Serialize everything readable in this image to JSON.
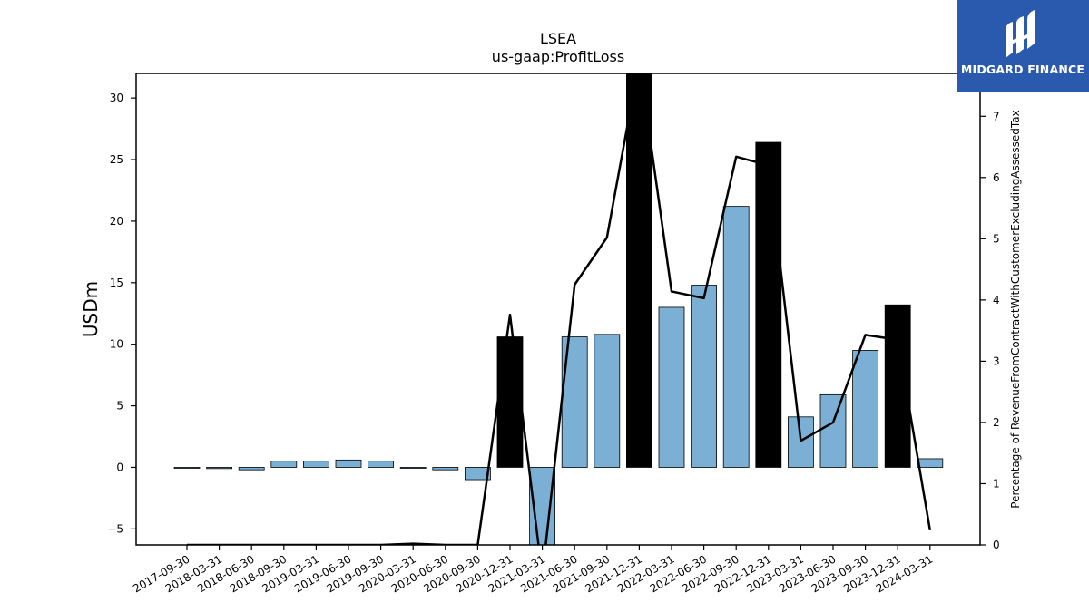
{
  "brand": {
    "name": "MIDGARD FINANCE",
    "logo_icon": "midgard-logo-icon",
    "color": "#2a5aad"
  },
  "chart_data": {
    "type": "bar",
    "title": "LSEA",
    "subtitle": "us-gaap:ProfitLoss",
    "ylabel": "USDm",
    "y2label": "Percentage of RevenueFromContractWithCustomerExcludingAssessedTax",
    "ylim": [
      -6.3,
      32
    ],
    "y2lim": [
      0,
      7.7
    ],
    "yticks": [
      -5,
      0,
      5,
      10,
      15,
      20,
      25,
      30
    ],
    "y2ticks": [
      0,
      1,
      2,
      3,
      4,
      5,
      6,
      7
    ],
    "categories": [
      "2017-09-30",
      "2018-03-31",
      "2018-06-30",
      "2018-09-30",
      "2019-03-31",
      "2019-06-30",
      "2019-09-30",
      "2020-03-31",
      "2020-06-30",
      "2020-09-30",
      "2020-12-31",
      "2021-03-31",
      "2021-06-30",
      "2021-09-30",
      "2021-12-31",
      "2022-03-31",
      "2022-06-30",
      "2022-09-30",
      "2022-12-31",
      "2023-03-31",
      "2023-06-30",
      "2023-09-30",
      "2023-12-31",
      "2024-03-31"
    ],
    "series": [
      {
        "kind": "bar",
        "values": [
          0.0,
          -0.1,
          -0.2,
          0.5,
          0.5,
          0.6,
          0.5,
          0.0,
          -0.2,
          -1.0,
          10.6,
          -6.3,
          10.6,
          10.8,
          32.0,
          13.0,
          14.8,
          21.2,
          26.4,
          4.1,
          5.9,
          9.5,
          13.2,
          0.7
        ],
        "highlight": [
          false,
          false,
          false,
          false,
          false,
          false,
          false,
          false,
          false,
          false,
          true,
          false,
          false,
          false,
          true,
          false,
          false,
          false,
          true,
          false,
          false,
          false,
          true,
          false
        ],
        "color": "#7bafd4",
        "highlight_color": "#000000"
      },
      {
        "kind": "line",
        "axis": "secondary",
        "values": [
          0.0,
          0.0,
          0.0,
          0.0,
          0.0,
          0.0,
          0.0,
          0.02,
          0.0,
          0.0,
          3.76,
          -0.5,
          4.25,
          5.02,
          7.9,
          4.14,
          4.03,
          6.34,
          6.2,
          1.7,
          2.0,
          3.43,
          3.35,
          0.24
        ],
        "color": "#000000"
      }
    ],
    "grid": false,
    "legend": "none"
  }
}
